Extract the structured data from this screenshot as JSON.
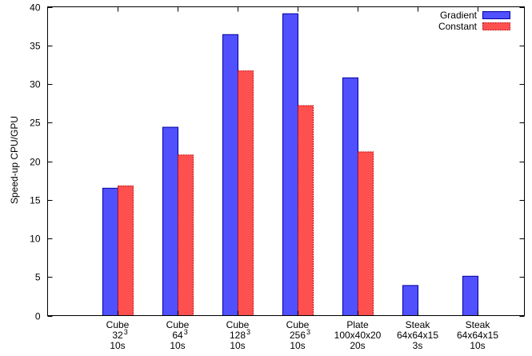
{
  "chart_data": {
    "type": "bar",
    "title": "",
    "xlabel": "",
    "ylabel": "Speed-up CPU/GPU",
    "ylim": [
      0,
      40
    ],
    "yticks": [
      0,
      5,
      10,
      15,
      20,
      25,
      30,
      35,
      40
    ],
    "grid": false,
    "legend_position": "top-right",
    "categories": [
      {
        "lines": [
          "Cube",
          "32",
          "10s"
        ],
        "sup": "3"
      },
      {
        "lines": [
          "Cube",
          "64",
          "10s"
        ],
        "sup": "3"
      },
      {
        "lines": [
          "Cube",
          "128",
          "10s"
        ],
        "sup": "3"
      },
      {
        "lines": [
          "Cube",
          "256",
          "10s"
        ],
        "sup": "3"
      },
      {
        "lines": [
          "Plate",
          "100x40x20",
          "20s"
        ],
        "sup": ""
      },
      {
        "lines": [
          "Steak",
          "64x64x15",
          "3s"
        ],
        "sup": ""
      },
      {
        "lines": [
          "Steak",
          "64x64x15",
          "10s"
        ],
        "sup": ""
      }
    ],
    "series": [
      {
        "name": "Gradient",
        "color": "#5050ff",
        "border": "#0000a0",
        "values": [
          16.5,
          24.4,
          36.4,
          39.1,
          30.8,
          3.9,
          5.1
        ]
      },
      {
        "name": "Constant",
        "color": "#ff5050",
        "border": "#c00000",
        "values": [
          16.8,
          20.8,
          31.7,
          27.2,
          21.2,
          null,
          null
        ]
      }
    ]
  }
}
